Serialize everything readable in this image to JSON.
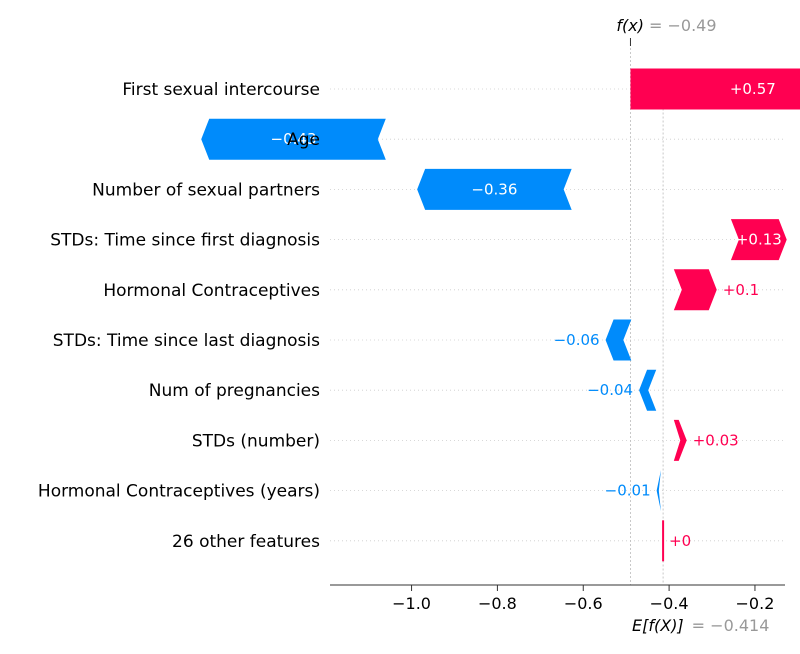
{
  "chart_data": {
    "type": "waterfall",
    "fx_label": "f(x)",
    "fx_value_text": "= −0.49",
    "fx_value": -0.49,
    "ex_label": "E[f(X)]",
    "ex_value_text": "= −0.414",
    "base_value": -0.414,
    "xlim": [
      -1.19,
      -0.13
    ],
    "ticks": [
      -1.0,
      -0.8,
      -0.6,
      -0.4,
      -0.2
    ],
    "tick_labels": [
      "−1.0",
      "−0.8",
      "−0.6",
      "−0.4",
      "−0.2"
    ],
    "colors": {
      "positive": "#ff0051",
      "negative": "#008bfb",
      "axis": "#333333",
      "muted": "#999999"
    },
    "rows": [
      {
        "feature": "First sexual intercourse",
        "value": 0.57,
        "label": "+0.57",
        "start": -0.49
      },
      {
        "feature": "Age",
        "value": -0.43,
        "label": "−0.43",
        "start": -1.06
      },
      {
        "feature": "Number of sexual partners",
        "value": -0.36,
        "label": "−0.36",
        "start": -0.627
      },
      {
        "feature": "STDs: Time since first diagnosis",
        "value": 0.13,
        "label": "+0.13",
        "start": -0.256
      },
      {
        "feature": "Hormonal Contraceptives",
        "value": 0.1,
        "label": "+0.1",
        "start": -0.389
      },
      {
        "feature": "STDs: Time since last diagnosis",
        "value": -0.06,
        "label": "−0.06",
        "start": -0.488
      },
      {
        "feature": "Num of pregnancies",
        "value": -0.04,
        "label": "−0.04",
        "start": -0.43
      },
      {
        "feature": "STDs (number)",
        "value": 0.03,
        "label": "+0.03",
        "start": -0.389
      },
      {
        "feature": "Hormonal Contraceptives (years)",
        "value": -0.01,
        "label": "−0.01",
        "start": -0.419
      },
      {
        "feature": "26 other features",
        "value": 0,
        "label": "+0",
        "start": -0.414
      }
    ]
  }
}
